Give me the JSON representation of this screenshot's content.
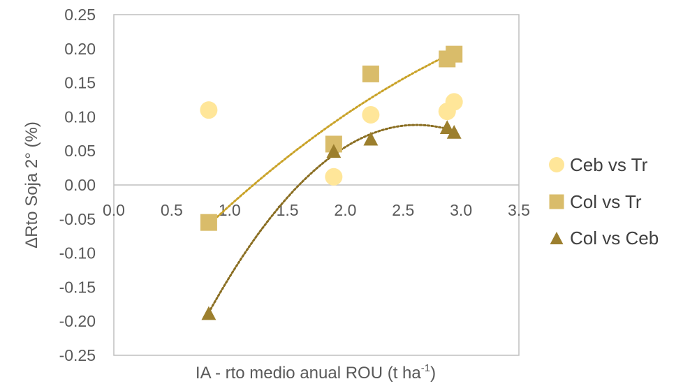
{
  "chart_data": {
    "type": "scatter",
    "xlabel": "IA - rto medio anual ROU (t ha",
    "xlabel_sup": "-1",
    "xlabel_end": ")",
    "ylabel": "ΔRto Soja 2° (%)",
    "xlim": [
      0,
      3.5
    ],
    "ylim": [
      -0.25,
      0.25
    ],
    "x_ticks": [
      "0.0",
      "0.5",
      "1.0",
      "1.5",
      "2.0",
      "2.5",
      "3.0",
      "3.5"
    ],
    "y_ticks": [
      "0.25",
      "0.20",
      "0.15",
      "0.10",
      "0.05",
      "0.00",
      "-0.05",
      "-0.10",
      "-0.15",
      "-0.20",
      "-0.25"
    ],
    "grid": false,
    "legend_position": "right",
    "series": [
      {
        "name": "Ceb vs Tr",
        "marker": "circle",
        "color": "#FFE699",
        "points": [
          [
            0.82,
            0.11
          ],
          [
            1.9,
            0.012
          ],
          [
            2.22,
            0.103
          ],
          [
            2.88,
            0.108
          ],
          [
            2.94,
            0.122
          ]
        ],
        "trendline": null
      },
      {
        "name": "Col vs Tr",
        "marker": "square",
        "color": "#D9BC6A",
        "points": [
          [
            0.82,
            -0.055
          ],
          [
            1.9,
            0.06
          ],
          [
            2.22,
            0.163
          ],
          [
            2.88,
            0.185
          ],
          [
            2.94,
            0.192
          ]
        ],
        "trendline": {
          "type": "poly2",
          "color": "#C9A227",
          "x_range": [
            0.82,
            2.94
          ]
        }
      },
      {
        "name": "Col vs Ceb",
        "marker": "triangle",
        "color": "#9C7F2E",
        "points": [
          [
            0.82,
            -0.188
          ],
          [
            1.9,
            0.05
          ],
          [
            2.22,
            0.068
          ],
          [
            2.88,
            0.085
          ],
          [
            2.94,
            0.078
          ]
        ],
        "trendline": {
          "type": "poly2",
          "color": "#8A6E22",
          "x_range": [
            0.82,
            2.94
          ]
        }
      }
    ]
  }
}
